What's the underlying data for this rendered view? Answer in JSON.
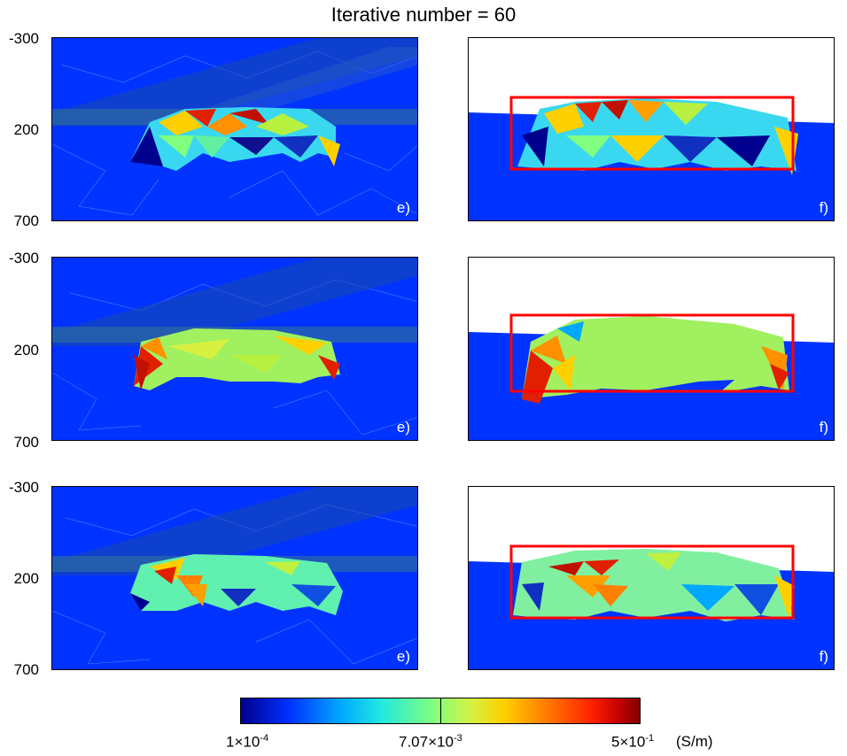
{
  "title": "Iterative number = 60",
  "rows": [
    {
      "left_label": "e)",
      "right_label": "f)",
      "y_ticks": [
        "-300",
        "200",
        "700"
      ]
    },
    {
      "left_label": "e)",
      "right_label": "f)",
      "y_ticks": [
        "-300",
        "200",
        "700"
      ]
    },
    {
      "left_label": "e)",
      "right_label": "f)",
      "y_ticks": [
        "-300",
        "200",
        "700"
      ]
    }
  ],
  "colorbar": {
    "min_mantissa": "1×10",
    "min_exp": "-4",
    "mid_mantissa": "7.07×10",
    "mid_exp": "-3",
    "max_mantissa": "5×10",
    "max_exp": "-1",
    "unit": "(S/m)"
  },
  "colors": {
    "background_blue": "#0033ff",
    "box_red": "#ff0000"
  }
}
